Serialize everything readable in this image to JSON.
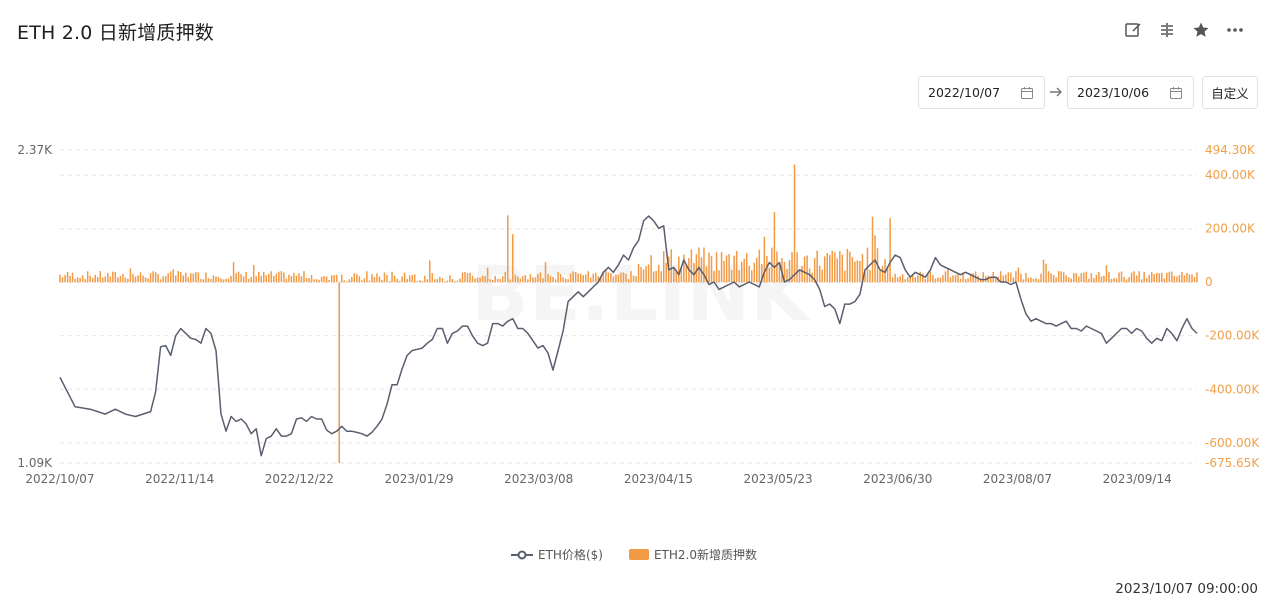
{
  "page": {
    "title": "ETH 2.0 日新增质押数",
    "toolbar": [
      {
        "icon": "edit-icon"
      },
      {
        "icon": "compare-icon"
      },
      {
        "icon": "star-icon"
      },
      {
        "icon": "more-icon"
      }
    ],
    "date_start": "2022/10/07",
    "date_end": "2023/10/06",
    "custom_label": "自定义",
    "timestamp": "2023/10/07 09:00:00",
    "watermark": "BE.LINK"
  },
  "colors": {
    "price": "#5a5e6e",
    "bars": "#f29a45",
    "axis_right": "#f0a04a",
    "axis_left": "#666666",
    "grid": "#e3e3e3"
  },
  "chart_data": {
    "type": "bar+line",
    "x_ticks": [
      "2022/10/07",
      "2022/11/14",
      "2022/12/22",
      "2023/01/29",
      "2023/03/08",
      "2023/04/15",
      "2023/05/23",
      "2023/06/30",
      "2023/08/07",
      "2023/09/14"
    ],
    "left_axis": {
      "min_label": "1.09K",
      "max_label": "2.37K",
      "ylim": [
        1090,
        2370
      ]
    },
    "right_axis": {
      "ticks": [
        "494.30K",
        "400.00K",
        "200.00K",
        "0",
        "-200.00K",
        "-400.00K",
        "-600.00K",
        "-675.65K"
      ],
      "ylim": [
        -675650,
        494300
      ]
    },
    "series": [
      {
        "name": "ETH价格($)",
        "kind": "line",
        "anchors": [
          [
            0,
            1440
          ],
          [
            6,
            1320
          ],
          [
            12,
            1310
          ],
          [
            18,
            1290
          ],
          [
            22,
            1310
          ],
          [
            26,
            1290
          ],
          [
            30,
            1280
          ],
          [
            36,
            1300
          ],
          [
            38,
            1380
          ],
          [
            40,
            1565
          ],
          [
            42,
            1570
          ],
          [
            44,
            1530
          ],
          [
            46,
            1610
          ],
          [
            48,
            1640
          ],
          [
            50,
            1620
          ],
          [
            52,
            1600
          ],
          [
            54,
            1595
          ],
          [
            56,
            1580
          ],
          [
            58,
            1640
          ],
          [
            60,
            1620
          ],
          [
            62,
            1550
          ],
          [
            64,
            1290
          ],
          [
            66,
            1220
          ],
          [
            68,
            1280
          ],
          [
            70,
            1260
          ],
          [
            72,
            1270
          ],
          [
            74,
            1250
          ],
          [
            76,
            1210
          ],
          [
            78,
            1230
          ],
          [
            80,
            1120
          ],
          [
            82,
            1190
          ],
          [
            84,
            1200
          ],
          [
            86,
            1230
          ],
          [
            88,
            1200
          ],
          [
            90,
            1200
          ],
          [
            92,
            1210
          ],
          [
            94,
            1270
          ],
          [
            96,
            1275
          ],
          [
            98,
            1260
          ],
          [
            100,
            1280
          ],
          [
            102,
            1270
          ],
          [
            104,
            1270
          ],
          [
            106,
            1225
          ],
          [
            108,
            1210
          ],
          [
            110,
            1220
          ],
          [
            112,
            1240
          ],
          [
            114,
            1220
          ],
          [
            116,
            1220
          ],
          [
            118,
            1215
          ],
          [
            120,
            1210
          ],
          [
            122,
            1200
          ],
          [
            124,
            1215
          ],
          [
            126,
            1240
          ],
          [
            128,
            1270
          ],
          [
            130,
            1330
          ],
          [
            132,
            1410
          ],
          [
            134,
            1410
          ],
          [
            136,
            1475
          ],
          [
            138,
            1530
          ],
          [
            140,
            1550
          ],
          [
            142,
            1555
          ],
          [
            144,
            1560
          ],
          [
            146,
            1580
          ],
          [
            148,
            1595
          ],
          [
            150,
            1640
          ],
          [
            152,
            1640
          ],
          [
            154,
            1580
          ],
          [
            156,
            1620
          ],
          [
            158,
            1630
          ],
          [
            160,
            1650
          ],
          [
            162,
            1650
          ],
          [
            164,
            1610
          ],
          [
            166,
            1580
          ],
          [
            168,
            1570
          ],
          [
            170,
            1580
          ],
          [
            172,
            1660
          ],
          [
            174,
            1660
          ],
          [
            176,
            1650
          ],
          [
            178,
            1670
          ],
          [
            180,
            1680
          ],
          [
            182,
            1640
          ],
          [
            184,
            1640
          ],
          [
            186,
            1620
          ],
          [
            188,
            1590
          ],
          [
            190,
            1560
          ],
          [
            192,
            1570
          ],
          [
            194,
            1540
          ],
          [
            196,
            1470
          ],
          [
            198,
            1550
          ],
          [
            200,
            1630
          ],
          [
            202,
            1750
          ],
          [
            204,
            1770
          ],
          [
            206,
            1790
          ],
          [
            208,
            1770
          ],
          [
            210,
            1790
          ],
          [
            212,
            1810
          ],
          [
            214,
            1830
          ],
          [
            216,
            1870
          ],
          [
            218,
            1890
          ],
          [
            220,
            1870
          ],
          [
            222,
            1900
          ],
          [
            224,
            1940
          ],
          [
            226,
            1920
          ],
          [
            228,
            1970
          ],
          [
            230,
            2000
          ],
          [
            232,
            2080
          ],
          [
            234,
            2100
          ],
          [
            236,
            2080
          ],
          [
            238,
            2050
          ],
          [
            240,
            2060
          ],
          [
            242,
            1880
          ],
          [
            244,
            1890
          ],
          [
            246,
            1860
          ],
          [
            248,
            1920
          ],
          [
            250,
            1880
          ],
          [
            252,
            1860
          ],
          [
            254,
            1890
          ],
          [
            256,
            1860
          ],
          [
            258,
            1820
          ],
          [
            260,
            1830
          ],
          [
            262,
            1800
          ],
          [
            264,
            1810
          ],
          [
            266,
            1820
          ],
          [
            268,
            1830
          ],
          [
            270,
            1810
          ],
          [
            272,
            1820
          ],
          [
            274,
            1830
          ],
          [
            276,
            1820
          ],
          [
            278,
            1810
          ],
          [
            280,
            1870
          ],
          [
            282,
            1910
          ],
          [
            284,
            1890
          ],
          [
            286,
            1910
          ],
          [
            288,
            1830
          ],
          [
            290,
            1840
          ],
          [
            292,
            1860
          ],
          [
            294,
            1880
          ],
          [
            296,
            1870
          ],
          [
            298,
            1860
          ],
          [
            300,
            1840
          ],
          [
            302,
            1800
          ],
          [
            304,
            1730
          ],
          [
            306,
            1740
          ],
          [
            308,
            1720
          ],
          [
            310,
            1660
          ],
          [
            312,
            1740
          ],
          [
            314,
            1740
          ],
          [
            316,
            1750
          ],
          [
            318,
            1780
          ],
          [
            320,
            1880
          ],
          [
            322,
            1900
          ],
          [
            324,
            1920
          ],
          [
            326,
            1880
          ],
          [
            328,
            1870
          ],
          [
            330,
            1910
          ],
          [
            332,
            1940
          ],
          [
            334,
            1930
          ],
          [
            336,
            1880
          ],
          [
            338,
            1850
          ],
          [
            340,
            1870
          ],
          [
            342,
            1860
          ],
          [
            344,
            1850
          ],
          [
            346,
            1880
          ],
          [
            348,
            1930
          ],
          [
            350,
            1900
          ],
          [
            352,
            1890
          ],
          [
            354,
            1880
          ],
          [
            356,
            1870
          ],
          [
            358,
            1860
          ],
          [
            360,
            1870
          ],
          [
            362,
            1860
          ],
          [
            364,
            1850
          ],
          [
            366,
            1840
          ],
          [
            368,
            1840
          ],
          [
            370,
            1850
          ],
          [
            372,
            1850
          ],
          [
            374,
            1830
          ],
          [
            376,
            1830
          ],
          [
            378,
            1820
          ],
          [
            380,
            1830
          ],
          [
            382,
            1760
          ],
          [
            384,
            1700
          ],
          [
            386,
            1670
          ],
          [
            388,
            1680
          ],
          [
            390,
            1670
          ],
          [
            392,
            1660
          ],
          [
            394,
            1660
          ],
          [
            396,
            1650
          ],
          [
            398,
            1660
          ],
          [
            400,
            1670
          ],
          [
            402,
            1640
          ],
          [
            404,
            1640
          ],
          [
            406,
            1630
          ],
          [
            408,
            1650
          ],
          [
            410,
            1640
          ],
          [
            412,
            1630
          ],
          [
            414,
            1620
          ],
          [
            416,
            1580
          ],
          [
            418,
            1600
          ],
          [
            420,
            1620
          ],
          [
            422,
            1640
          ],
          [
            424,
            1640
          ],
          [
            426,
            1620
          ],
          [
            428,
            1640
          ],
          [
            430,
            1630
          ],
          [
            432,
            1600
          ],
          [
            434,
            1580
          ],
          [
            436,
            1600
          ],
          [
            438,
            1590
          ],
          [
            440,
            1640
          ],
          [
            442,
            1620
          ],
          [
            444,
            1590
          ],
          [
            446,
            1640
          ],
          [
            448,
            1680
          ],
          [
            450,
            1640
          ],
          [
            452,
            1620
          ]
        ]
      },
      {
        "name": "ETH2.0新增质押数",
        "kind": "bar",
        "big_bars": [
          [
            178,
            250000
          ],
          [
            180,
            180000
          ],
          [
            111,
            -675650
          ],
          [
            292,
            440000
          ],
          [
            284,
            262000
          ],
          [
            280,
            170000
          ]
        ],
        "typical_level": 35000,
        "active_level": 110000
      }
    ],
    "n_days": 453,
    "legend_position": "bottom-center"
  }
}
